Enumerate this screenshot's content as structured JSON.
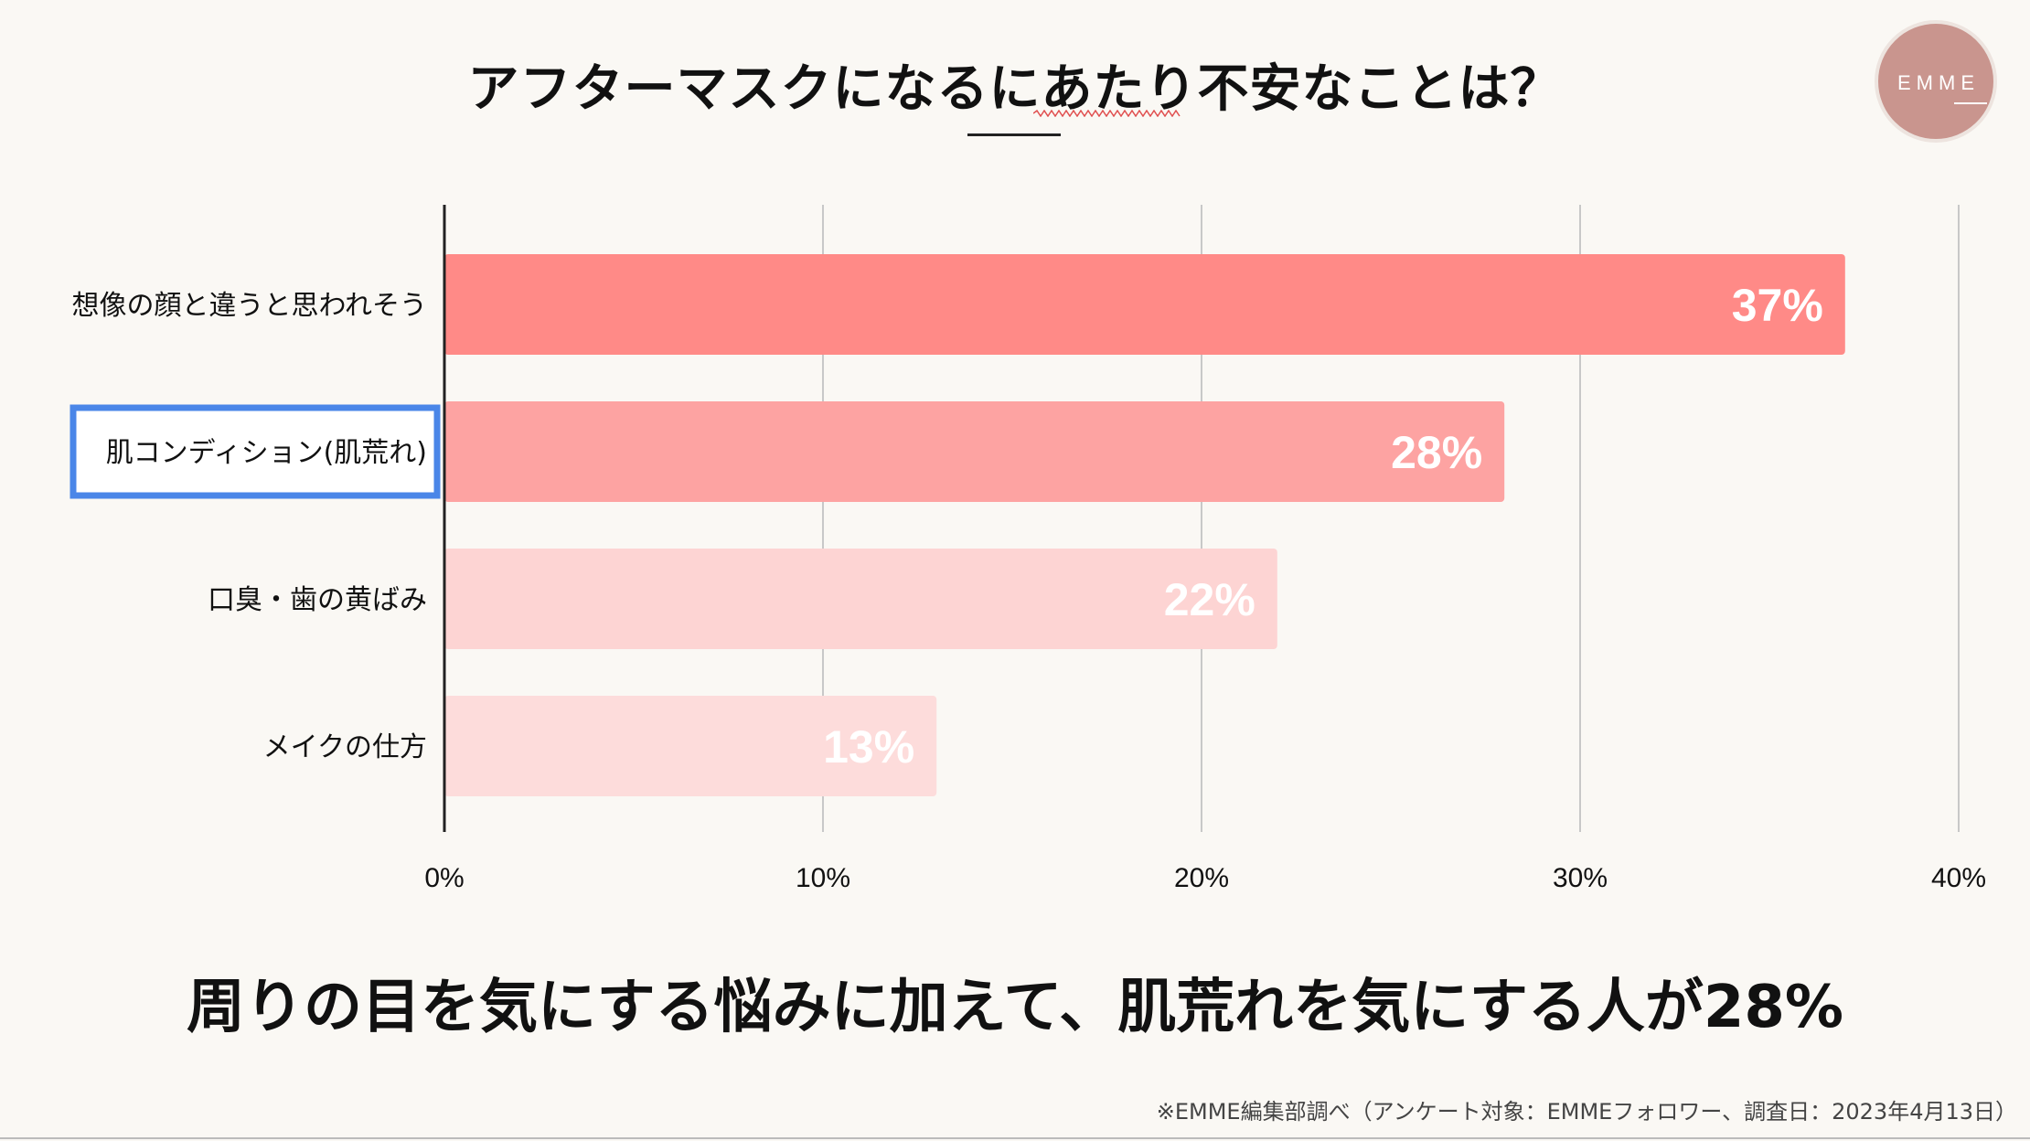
{
  "title": "アフターマスクになるにあたり不安なことは？",
  "logo_text": "EMME",
  "subtitle": "周りの目を気にする悩みに加えて、肌荒れを気にする人が28%",
  "source": "※EMME編集部調べ（アンケート対象：EMMEフォロワー、調査日：2023年4月13日）",
  "colors": {
    "background": "#faf8f4",
    "bars": [
      "#ff8a87",
      "#fda3a2",
      "#fdd4d3",
      "#fddcdb"
    ],
    "highlight_box": "#4a86e8",
    "grid": "#c8c8c8"
  },
  "chart_data": {
    "type": "bar",
    "orientation": "horizontal",
    "categories": [
      "想像の顔と違うと思われそう",
      "肌コンディション(肌荒れ)",
      "口臭・歯の黄ばみ",
      "メイクの仕方"
    ],
    "values": [
      37,
      28,
      22,
      13
    ],
    "value_labels": [
      "37%",
      "28%",
      "22%",
      "13%"
    ],
    "x_ticks": [
      "0%",
      "10%",
      "20%",
      "30%",
      "40%"
    ],
    "xlim": [
      0,
      40
    ],
    "grid": true,
    "highlighted_category": "肌コンディション(肌荒れ)",
    "title": "アフターマスクになるにあたり不安なことは？"
  }
}
